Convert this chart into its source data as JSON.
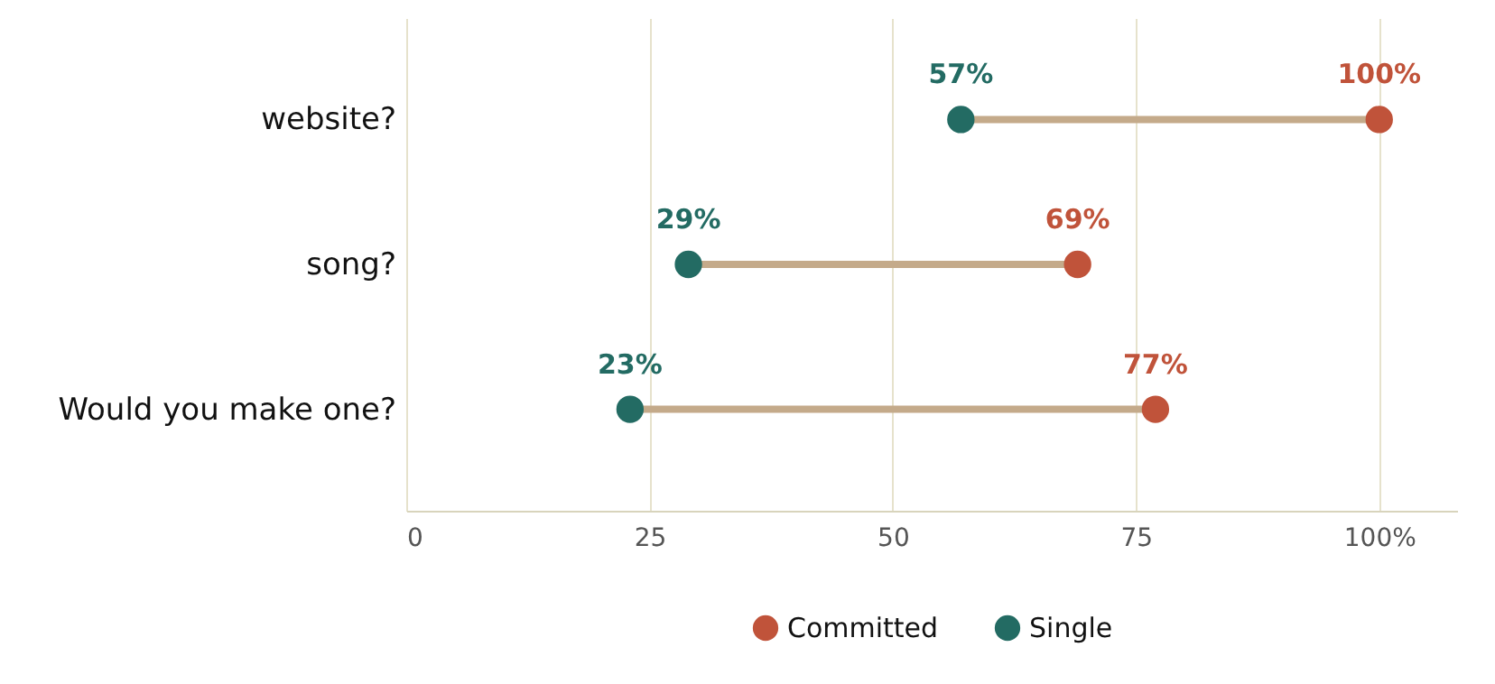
{
  "chart_data": {
    "type": "scatter",
    "categories": [
      "website?",
      "song?",
      "Would you make one?"
    ],
    "series": [
      {
        "name": "Committed",
        "color": "#c0533a",
        "values": [
          100,
          69,
          77
        ],
        "value_labels": [
          "100%",
          "69%",
          "77%"
        ]
      },
      {
        "name": "Single",
        "color": "#236b63",
        "values": [
          57,
          29,
          23
        ],
        "value_labels": [
          "57%",
          "29%",
          "23%"
        ]
      }
    ],
    "xlim": [
      0,
      108
    ],
    "xticks": [
      0,
      25,
      50,
      75,
      {
        "value": 100,
        "label": "100%"
      }
    ],
    "grid": "x",
    "legend": "bottom",
    "marker": "circle",
    "orientation": "horizontal"
  }
}
